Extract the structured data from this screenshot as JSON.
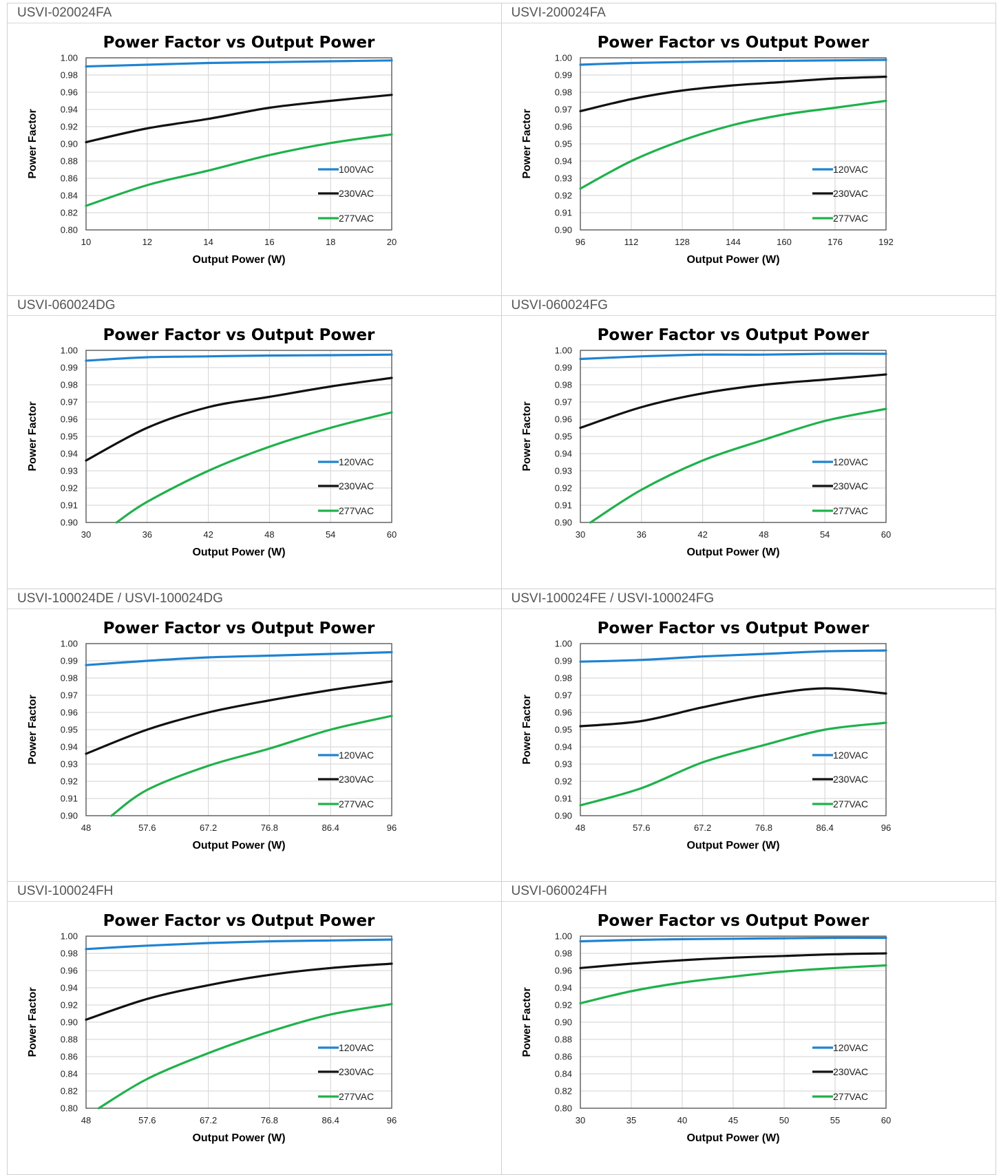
{
  "colors": {
    "blue": "#1f83d1",
    "black": "#111111",
    "green": "#1db24a",
    "grid": "#d9d9d9",
    "axis": "#595959"
  },
  "panels": [
    {
      "label": "USVI-020024FA",
      "chart_data": {
        "type": "line",
        "title": "Power Factor vs Output Power",
        "xlabel": "Output Power (W)",
        "ylabel": "Power Factor",
        "xlim": [
          10,
          20
        ],
        "ylim": [
          0.8,
          1.0
        ],
        "xticks": [
          "10",
          "12",
          "14",
          "16",
          "18",
          "20"
        ],
        "yticks": [
          "0.80",
          "0.82",
          "0.84",
          "0.86",
          "0.88",
          "0.90",
          "0.92",
          "0.94",
          "0.96",
          "0.98",
          "1.00"
        ],
        "grid": true,
        "legend": "right",
        "series": [
          {
            "name": "100VAC",
            "color": "blue",
            "x": [
              10,
              12,
              14,
              16,
              18,
              20
            ],
            "y": [
              0.99,
              0.992,
              0.994,
              0.995,
              0.996,
              0.997
            ]
          },
          {
            "name": "230VAC",
            "color": "black",
            "x": [
              10,
              12,
              14,
              16,
              18,
              20
            ],
            "y": [
              0.902,
              0.918,
              0.929,
              0.942,
              0.95,
              0.957
            ]
          },
          {
            "name": "277VAC",
            "color": "green",
            "x": [
              10,
              12,
              14,
              16,
              18,
              20
            ],
            "y": [
              0.828,
              0.852,
              0.869,
              0.887,
              0.901,
              0.911
            ]
          }
        ]
      }
    },
    {
      "label": "USVI-200024FA",
      "chart_data": {
        "type": "line",
        "title": "Power Factor vs Output Power",
        "xlabel": "Output Power (W)",
        "ylabel": "Power Factor",
        "xlim": [
          96,
          192
        ],
        "ylim": [
          0.9,
          1.0
        ],
        "xticks": [
          "96",
          "112",
          "128",
          "144",
          "160",
          "176",
          "192"
        ],
        "yticks": [
          "0.90",
          "0.91",
          "0.92",
          "0.93",
          "0.94",
          "0.95",
          "0.96",
          "0.97",
          "0.98",
          "0.99",
          "1.00"
        ],
        "grid": true,
        "legend": "right",
        "series": [
          {
            "name": "120VAC",
            "color": "blue",
            "x": [
              96,
              112,
              128,
              144,
              160,
              176,
              192
            ],
            "y": [
              0.996,
              0.997,
              0.9975,
              0.998,
              0.9983,
              0.9985,
              0.9988
            ]
          },
          {
            "name": "230VAC",
            "color": "black",
            "x": [
              96,
              112,
              128,
              144,
              160,
              176,
              192
            ],
            "y": [
              0.969,
              0.976,
              0.981,
              0.984,
              0.986,
              0.988,
              0.989
            ]
          },
          {
            "name": "277VAC",
            "color": "green",
            "x": [
              96,
              112,
              128,
              144,
              160,
              176,
              192
            ],
            "y": [
              0.924,
              0.94,
              0.952,
              0.961,
              0.967,
              0.971,
              0.975
            ]
          }
        ]
      }
    },
    {
      "label": "USVI-060024DG",
      "chart_data": {
        "type": "line",
        "title": "Power Factor vs Output Power",
        "xlabel": "Output Power (W)",
        "ylabel": "Power Factor",
        "xlim": [
          30,
          60
        ],
        "ylim": [
          0.9,
          1.0
        ],
        "xticks": [
          "30",
          "36",
          "42",
          "48",
          "54",
          "60"
        ],
        "yticks": [
          "0.90",
          "0.91",
          "0.92",
          "0.93",
          "0.94",
          "0.95",
          "0.96",
          "0.97",
          "0.98",
          "0.99",
          "1.00"
        ],
        "grid": true,
        "legend": "right",
        "series": [
          {
            "name": "120VAC",
            "color": "blue",
            "x": [
              30,
              36,
              42,
              48,
              54,
              60
            ],
            "y": [
              0.994,
              0.996,
              0.9965,
              0.997,
              0.9972,
              0.9975
            ]
          },
          {
            "name": "230VAC",
            "color": "black",
            "x": [
              30,
              36,
              42,
              48,
              54,
              60
            ],
            "y": [
              0.936,
              0.955,
              0.967,
              0.973,
              0.979,
              0.984
            ]
          },
          {
            "name": "277VAC",
            "color": "green",
            "x": [
              33,
              36,
              42,
              48,
              54,
              60
            ],
            "y": [
              0.9,
              0.912,
              0.93,
              0.944,
              0.955,
              0.964
            ]
          }
        ]
      }
    },
    {
      "label": "USVI-060024FG",
      "chart_data": {
        "type": "line",
        "title": "Power Factor vs Output Power",
        "xlabel": "Output Power (W)",
        "ylabel": "Power Factor",
        "xlim": [
          30,
          60
        ],
        "ylim": [
          0.9,
          1.0
        ],
        "xticks": [
          "30",
          "36",
          "42",
          "48",
          "54",
          "60"
        ],
        "yticks": [
          "0.90",
          "0.91",
          "0.92",
          "0.93",
          "0.94",
          "0.95",
          "0.96",
          "0.97",
          "0.98",
          "0.99",
          "1.00"
        ],
        "grid": true,
        "legend": "right",
        "series": [
          {
            "name": "120VAC",
            "color": "blue",
            "x": [
              30,
              36,
              42,
              48,
              54,
              60
            ],
            "y": [
              0.995,
              0.9965,
              0.9975,
              0.9975,
              0.998,
              0.998
            ]
          },
          {
            "name": "230VAC",
            "color": "black",
            "x": [
              30,
              36,
              42,
              48,
              54,
              60
            ],
            "y": [
              0.955,
              0.967,
              0.975,
              0.98,
              0.983,
              0.986
            ]
          },
          {
            "name": "277VAC",
            "color": "green",
            "x": [
              31,
              36,
              42,
              48,
              54,
              60
            ],
            "y": [
              0.9,
              0.919,
              0.936,
              0.948,
              0.959,
              0.966
            ]
          }
        ]
      }
    },
    {
      "label": "USVI-100024DE / USVI-100024DG",
      "chart_data": {
        "type": "line",
        "title": "Power Factor vs Output Power",
        "xlabel": "Output Power (W)",
        "ylabel": "Power Factor",
        "xlim": [
          48,
          96
        ],
        "ylim": [
          0.9,
          1.0
        ],
        "xticks": [
          "48",
          "57.6",
          "67.2",
          "76.8",
          "86.4",
          "96"
        ],
        "yticks": [
          "0.90",
          "0.91",
          "0.92",
          "0.93",
          "0.94",
          "0.95",
          "0.96",
          "0.97",
          "0.98",
          "0.99",
          "1.00"
        ],
        "grid": true,
        "legend": "right",
        "series": [
          {
            "name": "120VAC",
            "color": "blue",
            "x": [
              48,
              57.6,
              67.2,
              76.8,
              86.4,
              96
            ],
            "y": [
              0.9875,
              0.99,
              0.992,
              0.993,
              0.994,
              0.995
            ]
          },
          {
            "name": "230VAC",
            "color": "black",
            "x": [
              48,
              57.6,
              67.2,
              76.8,
              86.4,
              96
            ],
            "y": [
              0.936,
              0.95,
              0.96,
              0.967,
              0.973,
              0.978
            ]
          },
          {
            "name": "277VAC",
            "color": "green",
            "x": [
              52,
              57.6,
              67.2,
              76.8,
              86.4,
              96
            ],
            "y": [
              0.9,
              0.915,
              0.929,
              0.939,
              0.95,
              0.958
            ]
          }
        ]
      }
    },
    {
      "label": "USVI-100024FE / USVI-100024FG",
      "chart_data": {
        "type": "line",
        "title": "Power Factor vs Output Power",
        "xlabel": "Output Power (W)",
        "ylabel": "Power Factor",
        "xlim": [
          48,
          96
        ],
        "ylim": [
          0.9,
          1.0
        ],
        "xticks": [
          "48",
          "57.6",
          "67.2",
          "76.8",
          "86.4",
          "96"
        ],
        "yticks": [
          "0.90",
          "0.91",
          "0.92",
          "0.93",
          "0.94",
          "0.95",
          "0.96",
          "0.97",
          "0.98",
          "0.99",
          "1.00"
        ],
        "grid": true,
        "legend": "right",
        "series": [
          {
            "name": "120VAC",
            "color": "blue",
            "x": [
              48,
              57.6,
              67.2,
              76.8,
              86.4,
              96
            ],
            "y": [
              0.9895,
              0.9905,
              0.9925,
              0.994,
              0.9955,
              0.996
            ]
          },
          {
            "name": "230VAC",
            "color": "black",
            "x": [
              48,
              57.6,
              67.2,
              76.8,
              86.4,
              96
            ],
            "y": [
              0.952,
              0.955,
              0.963,
              0.97,
              0.974,
              0.971
            ]
          },
          {
            "name": "277VAC",
            "color": "green",
            "x": [
              48,
              57.6,
              67.2,
              76.8,
              86.4,
              96
            ],
            "y": [
              0.906,
              0.916,
              0.931,
              0.941,
              0.95,
              0.954
            ]
          }
        ]
      }
    },
    {
      "label": "USVI-100024FH",
      "chart_data": {
        "type": "line",
        "title": "Power Factor vs Output Power",
        "xlabel": "Output Power (W)",
        "ylabel": "Power Factor",
        "xlim": [
          48,
          96
        ],
        "ylim": [
          0.8,
          1.0
        ],
        "xticks": [
          "48",
          "57.6",
          "67.2",
          "76.8",
          "86.4",
          "96"
        ],
        "yticks": [
          "0.80",
          "0.82",
          "0.84",
          "0.86",
          "0.88",
          "0.90",
          "0.92",
          "0.94",
          "0.96",
          "0.98",
          "1.00"
        ],
        "grid": true,
        "legend": "right",
        "series": [
          {
            "name": "120VAC",
            "color": "blue",
            "x": [
              48,
              57.6,
              67.2,
              76.8,
              86.4,
              96
            ],
            "y": [
              0.985,
              0.989,
              0.992,
              0.994,
              0.995,
              0.996
            ]
          },
          {
            "name": "230VAC",
            "color": "black",
            "x": [
              48,
              57.6,
              67.2,
              76.8,
              86.4,
              96
            ],
            "y": [
              0.903,
              0.927,
              0.943,
              0.955,
              0.963,
              0.968
            ]
          },
          {
            "name": "277VAC",
            "color": "green",
            "x": [
              50,
              57.6,
              67.2,
              76.8,
              86.4,
              96
            ],
            "y": [
              0.8,
              0.834,
              0.864,
              0.889,
              0.909,
              0.921
            ]
          }
        ]
      }
    },
    {
      "label": "USVI-060024FH",
      "chart_data": {
        "type": "line",
        "title": "Power Factor vs Output Power",
        "xlabel": "Output Power (W)",
        "ylabel": "Power Factor",
        "xlim": [
          30,
          60
        ],
        "ylim": [
          0.8,
          1.0
        ],
        "xticks": [
          "30",
          "35",
          "40",
          "45",
          "50",
          "55",
          "60"
        ],
        "yticks": [
          "0.80",
          "0.82",
          "0.84",
          "0.86",
          "0.88",
          "0.90",
          "0.92",
          "0.94",
          "0.96",
          "0.98",
          "1.00"
        ],
        "grid": true,
        "legend": "right",
        "series": [
          {
            "name": "120VAC",
            "color": "blue",
            "x": [
              30,
              35,
              40,
              45,
              50,
              55,
              60
            ],
            "y": [
              0.994,
              0.9955,
              0.9965,
              0.997,
              0.9975,
              0.998,
              0.998
            ]
          },
          {
            "name": "230VAC",
            "color": "black",
            "x": [
              30,
              35,
              40,
              45,
              50,
              55,
              60
            ],
            "y": [
              0.963,
              0.968,
              0.972,
              0.975,
              0.977,
              0.979,
              0.98
            ]
          },
          {
            "name": "277VAC",
            "color": "green",
            "x": [
              30,
              35,
              40,
              45,
              50,
              55,
              60
            ],
            "y": [
              0.922,
              0.936,
              0.946,
              0.953,
              0.959,
              0.963,
              0.966
            ]
          }
        ]
      }
    }
  ]
}
